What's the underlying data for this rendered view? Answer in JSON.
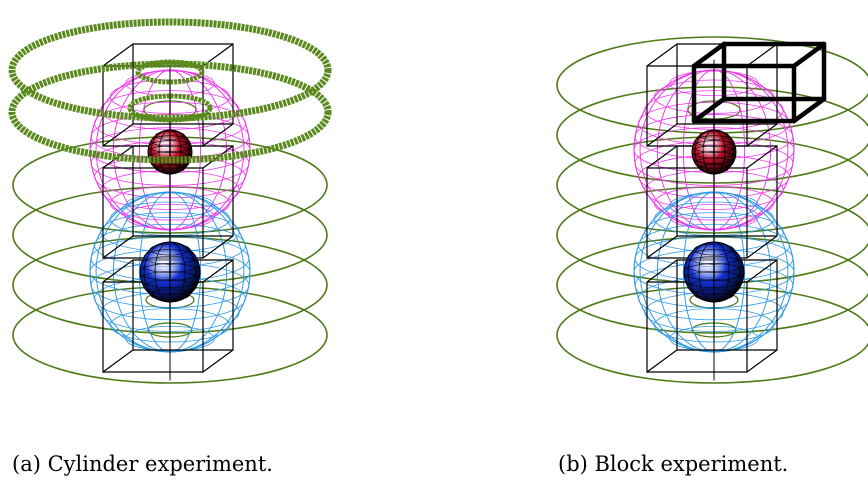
{
  "figures": [
    {
      "caption": "(a) Cylinder experiment."
    },
    {
      "caption": "(b) Block experiment."
    }
  ],
  "colors": {
    "ring_green": "#4e7a18",
    "ring_highlight": "#5a8a1e",
    "upper_sphere_wire": "#ee3aee",
    "lower_sphere_wire": "#2f9be8",
    "upper_core": "#c0102a",
    "lower_core": "#1230d0",
    "block_outline": "#000000"
  }
}
